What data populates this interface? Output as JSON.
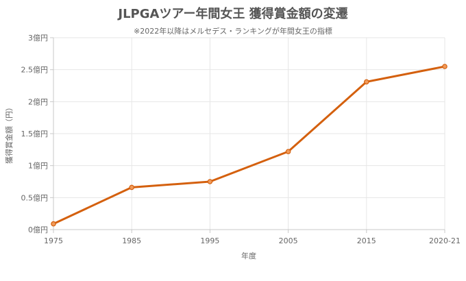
{
  "chart_data": {
    "type": "line",
    "title": "JLPGAツアー年間女王 獲得賞金額の変遷",
    "subtitle": "※2022年以降はメルセデス・ランキングが年間女王の指標",
    "xlabel": "年度",
    "ylabel": "獲得賞金額（円）",
    "categories": [
      "1975",
      "1985",
      "1995",
      "2005",
      "2015",
      "2020-21"
    ],
    "series": [
      {
        "values": [
          9000000,
          66000000,
          75000000,
          122000000,
          231000000,
          255000000
        ]
      }
    ],
    "ylim": [
      0,
      300000000
    ],
    "y_ticks": [
      {
        "value": 0,
        "label": "0億円"
      },
      {
        "value": 50000000,
        "label": "0.5億円"
      },
      {
        "value": 100000000,
        "label": "1億円"
      },
      {
        "value": 150000000,
        "label": "1.5億円"
      },
      {
        "value": 200000000,
        "label": "2億円"
      },
      {
        "value": 250000000,
        "label": "2.5億円"
      },
      {
        "value": 300000000,
        "label": "3億円"
      }
    ],
    "grid": true,
    "legend": "none",
    "colors": {
      "line": "#d4600e",
      "point_fill": "#f09a5a",
      "grid": "#e6e6e6"
    }
  }
}
